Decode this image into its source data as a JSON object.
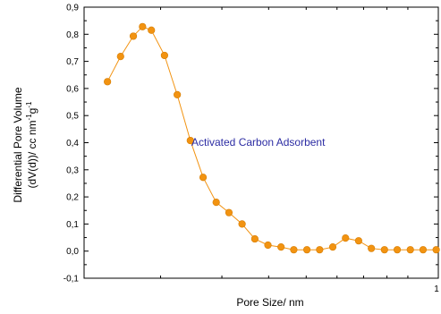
{
  "chart_data": {
    "type": "line",
    "title": "",
    "xlabel": "Pore Size/ nm",
    "ylabel_line1": "Differential Pore Volume",
    "ylabel_line2_main": "(dV(d))/ cc nm",
    "ylabel_sup1": "-1",
    "ylabel_mid": "g",
    "ylabel_sup2": "-1",
    "annotation": "Activated Carbon Adsorbent",
    "ylim": [
      -0.1,
      0.9
    ],
    "y_ticks": [
      "-0,1",
      "0,0",
      "0,1",
      "0,2",
      "0,3",
      "0,4",
      "0,5",
      "0,6",
      "0,7",
      "0,8",
      "0,9"
    ],
    "y_tick_values": [
      -0.1,
      0.0,
      0.1,
      0.2,
      0.3,
      0.4,
      0.5,
      0.6,
      0.7,
      0.8,
      0.9
    ],
    "x_ticks": [
      "1"
    ],
    "x_tick_positions": [
      1.0
    ],
    "xlim": [
      0,
      1
    ],
    "x_scale": "log",
    "grid": false,
    "series": [
      {
        "marker": "circle",
        "x": [
          0.066,
          0.103,
          0.139,
          0.165,
          0.19,
          0.227,
          0.263,
          0.3,
          0.336,
          0.373,
          0.409,
          0.446,
          0.482,
          0.519,
          0.556,
          0.592,
          0.629,
          0.665,
          0.702,
          0.738,
          0.775,
          0.811,
          0.848,
          0.884,
          0.921,
          0.957,
          0.994
        ],
        "y": [
          0.625,
          0.718,
          0.793,
          0.828,
          0.815,
          0.722,
          0.577,
          0.408,
          0.272,
          0.18,
          0.142,
          0.1,
          0.045,
          0.022,
          0.015,
          0.005,
          0.005,
          0.005,
          0.015,
          0.048,
          0.038,
          0.01,
          0.005,
          0.005,
          0.005,
          0.005,
          0.005
        ]
      }
    ]
  },
  "colors": {
    "series": "#f29311",
    "series_edge": "#d57d05",
    "annotation": "#2c2ca3",
    "axis": "#000000"
  }
}
